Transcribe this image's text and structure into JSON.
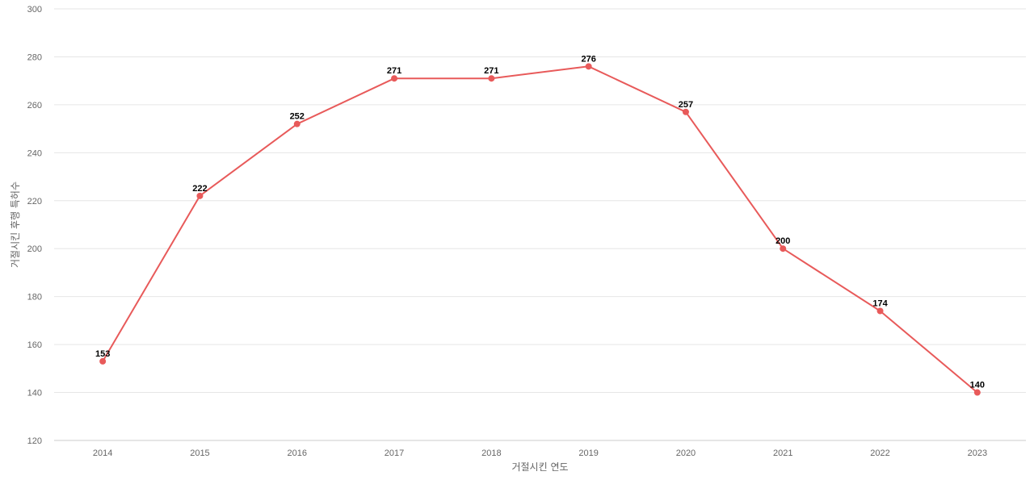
{
  "chart_data": {
    "type": "line",
    "title": "",
    "xlabel": "거절시킨 연도",
    "ylabel": "거절시킨 후행 특허수",
    "categories": [
      "2014",
      "2015",
      "2016",
      "2017",
      "2018",
      "2019",
      "2020",
      "2021",
      "2022",
      "2023"
    ],
    "series": [
      {
        "values": [
          153,
          222,
          252,
          271,
          271,
          276,
          257,
          200,
          174,
          140
        ],
        "color": "#e85a5a"
      }
    ],
    "ylim": [
      120,
      300
    ],
    "yticks": [
      120,
      140,
      160,
      180,
      200,
      220,
      240,
      260,
      280,
      300
    ],
    "grid": true,
    "data_labels": true,
    "legend": "none"
  }
}
